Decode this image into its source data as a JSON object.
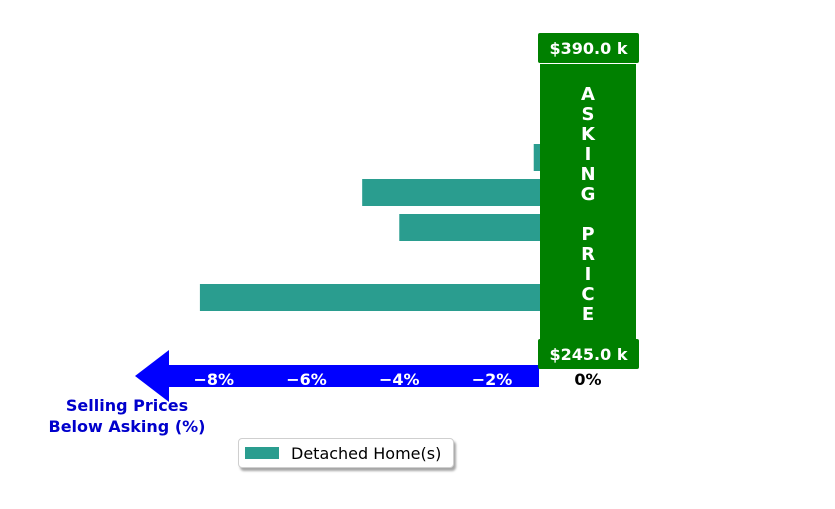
{
  "chart_data": {
    "type": "bar",
    "orientation": "horizontal",
    "series": [
      {
        "name": "Detached Home(s)",
        "values": [
          -0.2,
          1.1,
          -1.1,
          -4.8,
          -4.0,
          -0.4,
          -8.3,
          -0.6
        ]
      }
    ],
    "x_ticks": [
      "−8%",
      "−6%",
      "−4%",
      "−2%",
      "0%"
    ],
    "x_tick_values": [
      -8,
      -6,
      -4,
      -2,
      0
    ],
    "xlim": [
      -9.7,
      1.3
    ],
    "xlabel": "Selling Prices\nBelow Asking (%)",
    "asking_price_label": "ASKING PRICE",
    "asking_price_letters": [
      "A",
      "S",
      "K",
      "I",
      "N",
      "G",
      "",
      "P",
      "R",
      "I",
      "C",
      "E"
    ],
    "price_high": "$390.0 k",
    "price_low": "$245.0 k",
    "legend": {
      "label": "Detached Home(s)",
      "placement": "bottom-center"
    },
    "colors": {
      "bar": "#2a9d8f",
      "asking_band": "#008000",
      "arrow": "#0000ff",
      "xlabel": "#0000cc"
    },
    "grid": false
  }
}
